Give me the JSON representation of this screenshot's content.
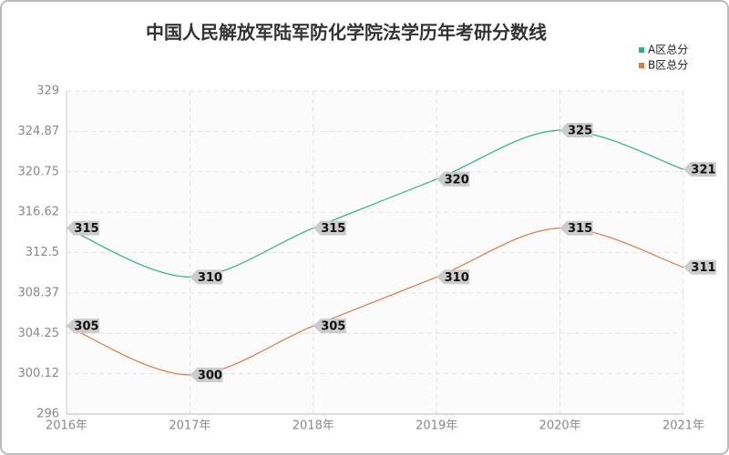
{
  "chart_data": {
    "type": "line",
    "title": "中国人民解放军陆军防化学院法学历年考研分数线",
    "categories": [
      "2016年",
      "2017年",
      "2018年",
      "2019年",
      "2020年",
      "2021年"
    ],
    "series": [
      {
        "name": "A区总分",
        "color": "#2bb38a",
        "values": [
          315,
          310,
          315,
          320,
          325,
          321
        ]
      },
      {
        "name": "B区总分",
        "color": "#e07848",
        "values": [
          305,
          300,
          305,
          310,
          315,
          311
        ]
      }
    ],
    "ylim": [
      296,
      329
    ],
    "yticks": [
      296,
      300.12,
      304.25,
      308.37,
      312.5,
      316.62,
      320.75,
      324.87,
      329
    ],
    "grid": true,
    "smooth": true,
    "legend": "top-right"
  }
}
